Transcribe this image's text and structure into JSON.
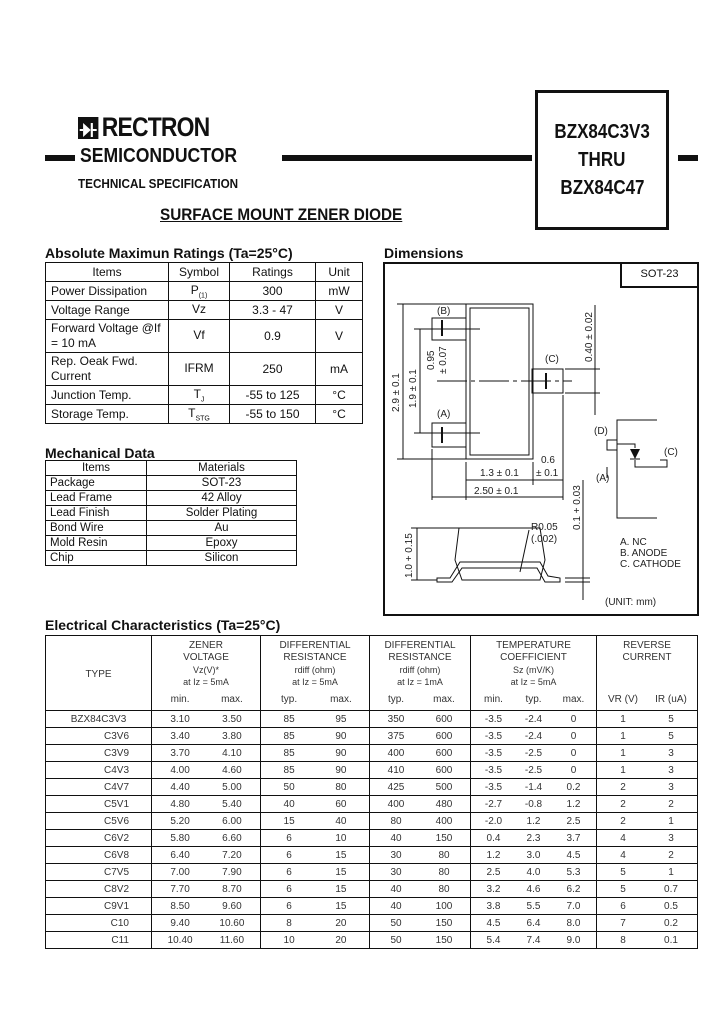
{
  "header": {
    "brand": "RECTRON",
    "division": "SEMICONDUCTOR",
    "subtitle": "TECHNICAL SPECIFICATION",
    "part_range": [
      "BZX84C3V3",
      "THRU",
      "BZX84C47"
    ],
    "doc_title": "SURFACE MOUNT ZENER DIODE"
  },
  "ratings": {
    "title": "Absolute Maximun Ratings (Ta=25°C)",
    "columns": [
      "Items",
      "Symbol",
      "Ratings",
      "Unit"
    ],
    "rows": [
      {
        "item": "Power Dissipation",
        "symbol": "P",
        "sub": "(1)",
        "rating": "300",
        "unit": "mW"
      },
      {
        "item": "Voltage Range",
        "symbol": "Vz",
        "sub": "",
        "rating": "3.3 - 47",
        "unit": "V"
      },
      {
        "item": "Forward Voltage @If = 10 mA",
        "symbol": "Vf",
        "sub": "",
        "rating": "0.9",
        "unit": "V"
      },
      {
        "item": "Rep. Oeak Fwd. Current",
        "symbol": "IFRM",
        "sub": "",
        "rating": "250",
        "unit": "mA"
      },
      {
        "item": "Junction Temp.",
        "symbol": "T",
        "sub": "J",
        "rating": "-55 to 125",
        "unit": "°C"
      },
      {
        "item": "Storage Temp.",
        "symbol": "T",
        "sub": "STG",
        "rating": "-55 to 150",
        "unit": "°C"
      }
    ]
  },
  "mechanical": {
    "title": "Mechanical Data",
    "columns": [
      "Items",
      "Materials"
    ],
    "rows": [
      [
        "Package",
        "SOT-23"
      ],
      [
        "Lead Frame",
        "42 Alloy"
      ],
      [
        "Lead Finish",
        "Solder Plating"
      ],
      [
        "Bond Wire",
        "Au"
      ],
      [
        "Mold Resin",
        "Epoxy"
      ],
      [
        "Chip",
        "Silicon"
      ]
    ]
  },
  "dimensions": {
    "title": "Dimensions",
    "package": "SOT-23",
    "labels": {
      "b": "(B)",
      "a": "(A)",
      "c": "(C)",
      "d": "(D)",
      "h29": "2.9 ± 0.1",
      "h19": "1.9 ± 0.1",
      "p095a": "0.95",
      "p095b": "± 0.07",
      "w040": "0.40 ± 0.02",
      "w13": "1.3 ± 0.1",
      "w06a": "0.6",
      "w06b": "± 0.1",
      "w250": "2.50 ± 0.1",
      "h10": "1.0 + 0.15",
      "r005a": "R0.05",
      "r005b": "(.002)",
      "t01": "0.1 + 0.03"
    },
    "pins": [
      "A. NC",
      "B. ANODE",
      "C. CATHODE"
    ],
    "unit": "(UNIT: mm)"
  },
  "electrical": {
    "title": "Electrical Characteristics (Ta=25°C)",
    "groups": [
      {
        "label": "TYPE"
      },
      {
        "lines": [
          "ZENER",
          "VOLTAGE",
          "Vz(V)*",
          "at Iz = 5mA"
        ],
        "sub": [
          "min.",
          "max."
        ]
      },
      {
        "lines": [
          "DIFFERENTIAL",
          "RESISTANCE",
          "rdiff (ohm)",
          "at Iz = 5mA"
        ],
        "sub": [
          "typ.",
          "max."
        ]
      },
      {
        "lines": [
          "DIFFERENTIAL",
          "RESISTANCE",
          "rdiff (ohm)",
          "at Iz = 1mA"
        ],
        "sub": [
          "typ.",
          "max."
        ]
      },
      {
        "lines": [
          "TEMPERATURE",
          "COEFFICIENT",
          "Sz (mV/K)",
          "at Iz = 5mA"
        ],
        "sub": [
          "min.",
          "typ.",
          "max."
        ]
      },
      {
        "lines": [
          "REVERSE",
          "CURRENT",
          "",
          ""
        ],
        "sub": [
          "VR (V)",
          "IR (uA)"
        ]
      }
    ],
    "rows": [
      [
        "BZX84C3V3",
        "3.10",
        "3.50",
        "85",
        "95",
        "350",
        "600",
        "-3.5",
        "-2.4",
        "0",
        "1",
        "5"
      ],
      [
        "C3V6",
        "3.40",
        "3.80",
        "85",
        "90",
        "375",
        "600",
        "-3.5",
        "-2.4",
        "0",
        "1",
        "5"
      ],
      [
        "C3V9",
        "3.70",
        "4.10",
        "85",
        "90",
        "400",
        "600",
        "-3.5",
        "-2.5",
        "0",
        "1",
        "3"
      ],
      [
        "C4V3",
        "4.00",
        "4.60",
        "85",
        "90",
        "410",
        "600",
        "-3.5",
        "-2.5",
        "0",
        "1",
        "3"
      ],
      [
        "C4V7",
        "4.40",
        "5.00",
        "50",
        "80",
        "425",
        "500",
        "-3.5",
        "-1.4",
        "0.2",
        "2",
        "3"
      ],
      [
        "C5V1",
        "4.80",
        "5.40",
        "40",
        "60",
        "400",
        "480",
        "-2.7",
        "-0.8",
        "1.2",
        "2",
        "2"
      ],
      [
        "C5V6",
        "5.20",
        "6.00",
        "15",
        "40",
        "80",
        "400",
        "-2.0",
        "1.2",
        "2.5",
        "2",
        "1"
      ],
      [
        "C6V2",
        "5.80",
        "6.60",
        "6",
        "10",
        "40",
        "150",
        "0.4",
        "2.3",
        "3.7",
        "4",
        "3"
      ],
      [
        "C6V8",
        "6.40",
        "7.20",
        "6",
        "15",
        "30",
        "80",
        "1.2",
        "3.0",
        "4.5",
        "4",
        "2"
      ],
      [
        "C7V5",
        "7.00",
        "7.90",
        "6",
        "15",
        "30",
        "80",
        "2.5",
        "4.0",
        "5.3",
        "5",
        "1"
      ],
      [
        "C8V2",
        "7.70",
        "8.70",
        "6",
        "15",
        "40",
        "80",
        "3.2",
        "4.6",
        "6.2",
        "5",
        "0.7"
      ],
      [
        "C9V1",
        "8.50",
        "9.60",
        "6",
        "15",
        "40",
        "100",
        "3.8",
        "5.5",
        "7.0",
        "6",
        "0.5"
      ],
      [
        "C10",
        "9.40",
        "10.60",
        "8",
        "20",
        "50",
        "150",
        "4.5",
        "6.4",
        "8.0",
        "7",
        "0.2"
      ],
      [
        "C11",
        "10.40",
        "11.60",
        "10",
        "20",
        "50",
        "150",
        "5.4",
        "7.4",
        "9.0",
        "8",
        "0.1"
      ]
    ]
  }
}
